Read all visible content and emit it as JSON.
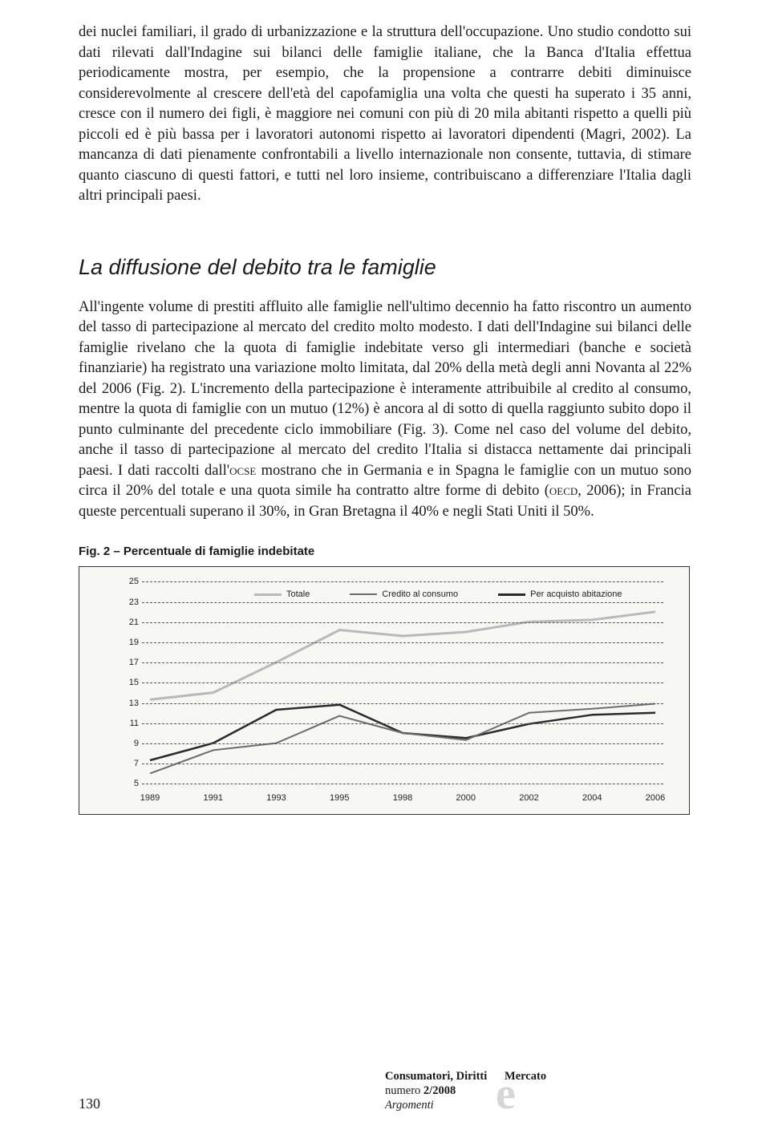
{
  "paragraph1": "dei nuclei familiari, il grado di urbanizzazione e la struttura dell'occupazione. Uno studio condotto sui dati rilevati dall'Indagine sui bilanci delle famiglie italiane, che la Banca d'Italia effettua periodicamente mostra, per esempio, che la propensione a contrarre debiti diminuisce considerevolmente al crescere dell'età del capofamiglia una volta che questi ha superato i 35 anni, cresce con il numero dei figli, è maggiore nei comuni con più di 20 mila abitanti rispetto a quelli più piccoli ed è più bassa per i lavoratori autonomi rispetto ai lavoratori dipendenti (Magri, 2002). La mancanza di dati pienamente confrontabili a livello internazionale non consente, tuttavia, di stimare quanto ciascuno di questi fattori, e tutti nel loro insieme, contribuiscano a differenziare l'Italia dagli altri principali paesi.",
  "section_title": "La diffusione del debito tra le famiglie",
  "paragraph2_part1": "All'ingente volume di prestiti affluito alle famiglie nell'ultimo decennio ha fatto riscontro un aumento del tasso di partecipazione al mercato del credito molto modesto. I dati dell'Indagine sui bilanci delle famiglie rivelano che la quota di famiglie indebitate verso gli intermediari (banche e società finanziarie) ha registrato una variazione molto limitata, dal 20% della metà degli anni Novanta al 22% del 2006 (Fig. 2). L'incremento della partecipazione è interamente attribuibile al credito al consumo, mentre la quota di famiglie con un mutuo (12%) è ancora al di sotto di quella raggiunto subito dopo il punto culminante del precedente ciclo immobiliare (Fig. 3). Come nel caso del volume del debito, anche il tasso di partecipazione al mercato del credito l'Italia si distacca nettamente dai principali paesi. I dati raccolti dall'",
  "paragraph2_ocse": "ocse",
  "paragraph2_part2": " mostrano che in Germania e in Spagna le famiglie con un mutuo sono circa il 20% del totale e una quota simile ha contratto altre forme di debito (",
  "paragraph2_oecd": "oecd",
  "paragraph2_part3": ", 2006); in Francia queste percentuali superano il 30%, in Gran Bretagna il 40% e negli Stati Uniti il 50%.",
  "fig_caption": "Fig. 2 – Percentuale di famiglie indebitate",
  "chart": {
    "type": "line",
    "background_color": "#f7f7f4",
    "border_color": "#333333",
    "grid_color": "#555555",
    "ylim": [
      5,
      25
    ],
    "ytick_step": 2,
    "y_ticks": [
      5,
      7,
      9,
      11,
      13,
      15,
      17,
      19,
      21,
      23,
      25
    ],
    "x_labels": [
      "1989",
      "1991",
      "1993",
      "1995",
      "1998",
      "2000",
      "2002",
      "2004",
      "2006"
    ],
    "legend": [
      {
        "label": "Totale",
        "color": "#b9b9b9",
        "width": 3
      },
      {
        "label": "Credito al consumo",
        "color": "#6d6d6d",
        "width": 2
      },
      {
        "label": "Per acquisto abitazione",
        "color": "#2a2a2a",
        "width": 2.5
      }
    ],
    "series": {
      "totale": {
        "color": "#b9b9b9",
        "width": 3,
        "values": [
          13.3,
          14.0,
          17.0,
          20.2,
          19.6,
          20.0,
          21.0,
          21.2,
          22.0
        ]
      },
      "credito": {
        "color": "#6d6d6d",
        "width": 2,
        "values": [
          6.0,
          8.3,
          9.0,
          11.7,
          10.0,
          9.3,
          12.0,
          12.4,
          12.9
        ]
      },
      "acquisto": {
        "color": "#2a2a2a",
        "width": 2.5,
        "values": [
          7.3,
          9.0,
          12.3,
          12.8,
          10.0,
          9.5,
          10.9,
          11.8,
          12.0
        ]
      }
    },
    "tick_fontsize": 11,
    "legend_fontsize": 11
  },
  "footer": {
    "page_number": "130",
    "pub_line1_a": "Consumatori, Diritti",
    "pub_line1_b": "Mercato",
    "pub_line2_a": "numero ",
    "pub_line2_b": "2/2008",
    "pub_line3": "Argomenti",
    "big_e": "e"
  }
}
